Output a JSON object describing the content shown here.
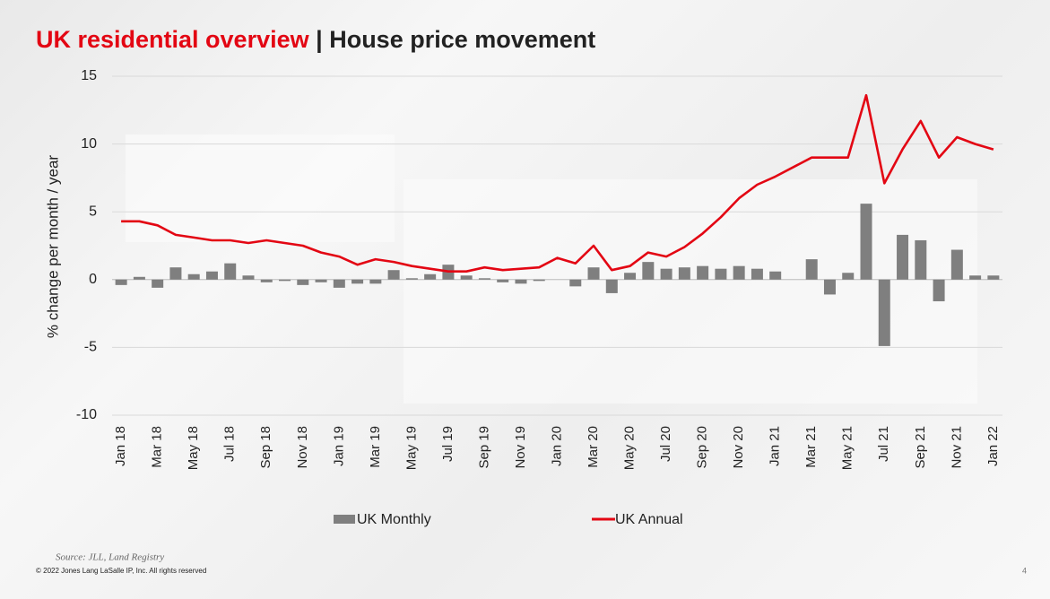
{
  "slide": {
    "title_highlight": "UK residential overview",
    "title_rest": "| House price movement",
    "source": "Source: JLL, Land Registry",
    "copyright": "© 2022 Jones Lang LaSalle IP, Inc. All rights reserved",
    "page": "4"
  },
  "chart_data": {
    "type": "bar_line",
    "y_label": "% change per month / year",
    "categories": [
      "Jan 18",
      null,
      "Mar 18",
      null,
      "May 18",
      null,
      "Jul 18",
      null,
      "Sep 18",
      null,
      "Nov 18",
      null,
      "Jan 19",
      null,
      "Mar 19",
      null,
      "May 19",
      null,
      "Jul 19",
      null,
      "Sep 19",
      null,
      "Nov 19",
      null,
      "Jan 20",
      null,
      "Mar 20",
      null,
      "May 20",
      null,
      "Jul 20",
      null,
      "Sep 20",
      null,
      "Nov 20",
      null,
      "Jan 21",
      null,
      "Mar 21",
      null,
      "May 21",
      null,
      "Jul 21",
      null,
      "Sep 21",
      null,
      "Nov 21",
      null,
      "Jan 22"
    ],
    "series": [
      {
        "name": "UK Monthly",
        "type": "bar",
        "color": "#7f7f7f",
        "values": [
          -0.4,
          0.2,
          -0.6,
          0.9,
          0.4,
          0.6,
          1.2,
          0.3,
          -0.2,
          -0.1,
          -0.4,
          -0.2,
          -0.6,
          -0.3,
          -0.3,
          0.7,
          0.1,
          0.4,
          1.1,
          0.3,
          0.1,
          -0.2,
          -0.3,
          -0.1,
          0.0,
          -0.5,
          0.9,
          -1.0,
          0.5,
          1.3,
          0.8,
          0.9,
          1.0,
          0.8,
          1.0,
          0.8,
          0.6,
          null,
          1.5,
          -1.1,
          0.5,
          5.6,
          -4.9,
          3.3,
          2.9,
          -1.6,
          2.2,
          0.3,
          0.3
        ]
      },
      {
        "name": "UK Annual",
        "type": "line",
        "color": "#e30613",
        "values": [
          4.3,
          4.3,
          4.0,
          3.3,
          3.1,
          2.9,
          2.9,
          2.7,
          2.9,
          2.7,
          2.5,
          2.0,
          1.7,
          1.1,
          1.5,
          1.3,
          1.0,
          0.8,
          0.6,
          0.6,
          0.9,
          0.7,
          0.8,
          0.9,
          1.6,
          1.2,
          2.5,
          0.7,
          1.0,
          2.0,
          1.7,
          2.4,
          3.4,
          4.6,
          6.0,
          7.0,
          7.6,
          8.3,
          9.0,
          9.0,
          9.0,
          13.6,
          7.1,
          9.6,
          11.7,
          9.0,
          10.5,
          10.0,
          9.6
        ]
      }
    ],
    "ylim": [
      -10,
      15
    ],
    "yticks": [
      15,
      10,
      5,
      0,
      -5,
      -10
    ],
    "grid": true,
    "legend": "bottom"
  }
}
